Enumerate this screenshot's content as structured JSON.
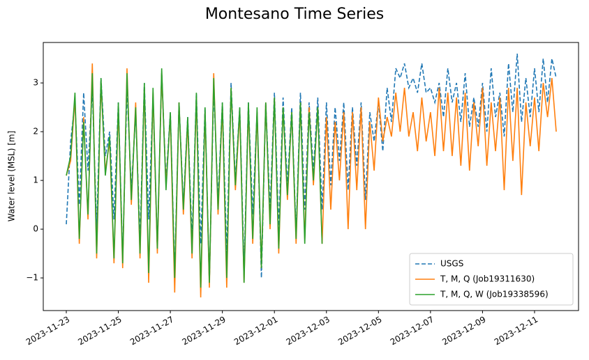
{
  "chart_data": {
    "type": "line",
    "title": "Montesano Time Series",
    "y_label": "Water level (MSL) [m]",
    "x": [
      "2023-11-23 00:00",
      "2023-11-23 04:00",
      "2023-11-23 08:00",
      "2023-11-23 12:00",
      "2023-11-23 16:00",
      "2023-11-23 20:00",
      "2023-11-24 00:00",
      "2023-11-24 04:00",
      "2023-11-24 08:00",
      "2023-11-24 12:00",
      "2023-11-24 16:00",
      "2023-11-24 20:00",
      "2023-11-25 00:00",
      "2023-11-25 04:00",
      "2023-11-25 08:00",
      "2023-11-25 12:00",
      "2023-11-25 16:00",
      "2023-11-25 20:00",
      "2023-11-26 00:00",
      "2023-11-26 04:00",
      "2023-11-26 08:00",
      "2023-11-26 12:00",
      "2023-11-26 16:00",
      "2023-11-26 20:00",
      "2023-11-27 00:00",
      "2023-11-27 04:00",
      "2023-11-27 08:00",
      "2023-11-27 12:00",
      "2023-11-27 16:00",
      "2023-11-27 20:00",
      "2023-11-28 00:00",
      "2023-11-28 04:00",
      "2023-11-28 08:00",
      "2023-11-28 12:00",
      "2023-11-28 16:00",
      "2023-11-28 20:00",
      "2023-11-29 00:00",
      "2023-11-29 04:00",
      "2023-11-29 08:00",
      "2023-11-29 12:00",
      "2023-11-29 16:00",
      "2023-11-29 20:00",
      "2023-11-30 00:00",
      "2023-11-30 04:00",
      "2023-11-30 08:00",
      "2023-11-30 12:00",
      "2023-11-30 16:00",
      "2023-11-30 20:00",
      "2023-12-01 00:00",
      "2023-12-01 04:00",
      "2023-12-01 08:00",
      "2023-12-01 12:00",
      "2023-12-01 16:00",
      "2023-12-01 20:00",
      "2023-12-02 00:00",
      "2023-12-02 04:00",
      "2023-12-02 08:00",
      "2023-12-02 12:00",
      "2023-12-02 16:00",
      "2023-12-02 20:00",
      "2023-12-03 00:00",
      "2023-12-03 04:00",
      "2023-12-03 08:00",
      "2023-12-03 12:00",
      "2023-12-03 16:00",
      "2023-12-03 20:00",
      "2023-12-04 00:00",
      "2023-12-04 04:00",
      "2023-12-04 08:00",
      "2023-12-04 12:00",
      "2023-12-04 16:00",
      "2023-12-04 20:00",
      "2023-12-05 00:00",
      "2023-12-05 04:00",
      "2023-12-05 08:00",
      "2023-12-05 12:00",
      "2023-12-05 16:00",
      "2023-12-05 20:00",
      "2023-12-06 00:00",
      "2023-12-06 04:00",
      "2023-12-06 08:00",
      "2023-12-06 12:00",
      "2023-12-06 16:00",
      "2023-12-06 20:00",
      "2023-12-07 00:00",
      "2023-12-07 04:00",
      "2023-12-07 08:00",
      "2023-12-07 12:00",
      "2023-12-07 16:00",
      "2023-12-07 20:00",
      "2023-12-08 00:00",
      "2023-12-08 04:00",
      "2023-12-08 08:00",
      "2023-12-08 12:00",
      "2023-12-08 16:00",
      "2023-12-08 20:00",
      "2023-12-09 00:00",
      "2023-12-09 04:00",
      "2023-12-09 08:00",
      "2023-12-09 12:00",
      "2023-12-09 16:00",
      "2023-12-09 20:00",
      "2023-12-10 00:00",
      "2023-12-10 04:00",
      "2023-12-10 08:00",
      "2023-12-10 12:00",
      "2023-12-10 16:00",
      "2023-12-10 20:00",
      "2023-12-11 00:00",
      "2023-12-11 04:00",
      "2023-12-11 08:00",
      "2023-12-11 12:00",
      "2023-12-11 16:00",
      "2023-12-11 20:00"
    ],
    "series": [
      {
        "name": "USGS",
        "color": "#1f77b4",
        "linestyle": "dashed",
        "values": [
          0.1,
          1.8,
          2.6,
          0.5,
          2.8,
          1.2,
          2.9,
          0.0,
          3.1,
          1.5,
          2.0,
          0.2,
          2.6,
          -0.6,
          2.9,
          0.8,
          2.4,
          -0.2,
          3.0,
          0.2,
          2.7,
          -0.4,
          3.2,
          1.0,
          2.4,
          -0.9,
          2.6,
          0.5,
          2.3,
          -0.2,
          2.8,
          -0.3,
          2.5,
          -1.1,
          2.9,
          0.6,
          2.6,
          -0.5,
          3.0,
          1.0,
          2.5,
          -0.8,
          2.6,
          0.3,
          2.4,
          -1.0,
          2.6,
          0.4,
          2.8,
          0.0,
          2.7,
          0.9,
          2.5,
          -0.1,
          2.8,
          0.4,
          2.6,
          1.2,
          2.7,
          0.4,
          2.6,
          0.9,
          2.5,
          1.4,
          2.6,
          0.8,
          2.5,
          1.3,
          2.6,
          0.6,
          2.4,
          1.8,
          2.6,
          1.6,
          2.9,
          2.2,
          3.3,
          3.1,
          3.4,
          2.9,
          3.1,
          2.8,
          3.4,
          2.8,
          2.9,
          2.6,
          3.0,
          2.3,
          3.3,
          2.6,
          3.0,
          2.2,
          3.2,
          2.1,
          2.7,
          2.1,
          3.0,
          2.0,
          3.3,
          2.3,
          2.8,
          1.9,
          3.4,
          2.4,
          3.6,
          2.2,
          3.1,
          2.3,
          3.3,
          2.4,
          3.5,
          2.6,
          3.5,
          3.1
        ]
      },
      {
        "name": "T, M, Q (Job19311630)",
        "color": "#ff7f0e",
        "linestyle": "solid",
        "values": [
          1.1,
          1.4,
          2.7,
          -0.3,
          2.3,
          0.2,
          3.4,
          -0.6,
          3.0,
          1.2,
          1.8,
          -0.7,
          2.5,
          -0.8,
          3.3,
          0.5,
          2.6,
          -0.6,
          2.9,
          -1.1,
          2.8,
          -0.5,
          3.2,
          0.9,
          2.3,
          -1.3,
          2.6,
          0.3,
          2.2,
          -0.6,
          2.7,
          -1.4,
          2.4,
          -1.2,
          3.2,
          0.3,
          2.5,
          -1.2,
          2.9,
          0.8,
          2.4,
          -1.1,
          2.5,
          -0.3,
          2.4,
          -0.8,
          2.6,
          0.0,
          2.7,
          -0.5,
          2.5,
          0.6,
          2.4,
          -0.3,
          2.6,
          -0.2,
          2.5,
          0.9,
          2.5,
          -0.3,
          2.3,
          0.4,
          2.2,
          1.0,
          2.4,
          0.0,
          2.4,
          0.8,
          2.5,
          0.0,
          2.2,
          1.2,
          2.7,
          1.8,
          2.3,
          1.9,
          2.8,
          2.0,
          2.9,
          1.9,
          2.4,
          1.6,
          2.7,
          1.8,
          2.4,
          1.5,
          2.9,
          1.6,
          2.8,
          1.5,
          2.7,
          1.3,
          2.8,
          1.2,
          2.6,
          1.7,
          2.9,
          1.3,
          2.6,
          1.6,
          2.7,
          0.8,
          2.9,
          1.4,
          2.9,
          0.7,
          2.6,
          1.7,
          2.7,
          1.6,
          3.0,
          2.3,
          3.1,
          2.0
        ]
      },
      {
        "name": "T, M, Q, W (Job19338596)",
        "color": "#2ca02c",
        "linestyle": "solid",
        "values": [
          1.1,
          1.5,
          2.8,
          -0.2,
          2.2,
          0.3,
          3.2,
          -0.5,
          3.1,
          1.1,
          1.9,
          -0.6,
          2.6,
          -0.7,
          3.2,
          0.6,
          2.5,
          -0.5,
          3.0,
          -0.9,
          2.9,
          -0.4,
          3.3,
          0.8,
          2.4,
          -1.0,
          2.6,
          0.4,
          2.3,
          -0.5,
          2.8,
          -1.2,
          2.5,
          -1.1,
          3.1,
          0.4,
          2.6,
          -1.0,
          2.9,
          0.9,
          2.5,
          -1.1,
          2.6,
          -0.2,
          2.5,
          -0.8,
          2.6,
          0.1,
          2.7,
          -0.4,
          2.5,
          0.7,
          2.4,
          -0.2,
          2.6,
          -0.3,
          2.4,
          1.0,
          2.5,
          -0.3,
          null,
          null,
          null,
          null,
          null,
          null,
          null,
          null,
          null,
          null,
          null,
          null,
          null,
          null,
          null,
          null,
          null,
          null,
          null,
          null,
          null,
          null,
          null,
          null,
          null,
          null,
          null,
          null,
          null,
          null,
          null,
          null,
          null,
          null,
          null,
          null,
          null,
          null,
          null,
          null,
          null,
          null,
          null,
          null,
          null,
          null,
          null,
          null,
          null,
          null,
          null,
          null,
          null,
          null
        ]
      }
    ],
    "xlim": [
      "2023-11-22 02:45",
      "2023-12-12 16:35"
    ],
    "xticks": [
      "2023-11-23",
      "2023-11-25",
      "2023-11-27",
      "2023-11-29",
      "2023-12-01",
      "2023-12-03",
      "2023-12-05",
      "2023-12-07",
      "2023-12-09",
      "2023-12-11"
    ],
    "ylim": [
      -1.67,
      3.83
    ],
    "yticks": [
      {
        "value": -1,
        "label": "−1"
      },
      0,
      1,
      2,
      3
    ],
    "grid": false,
    "legend": "lower right"
  }
}
